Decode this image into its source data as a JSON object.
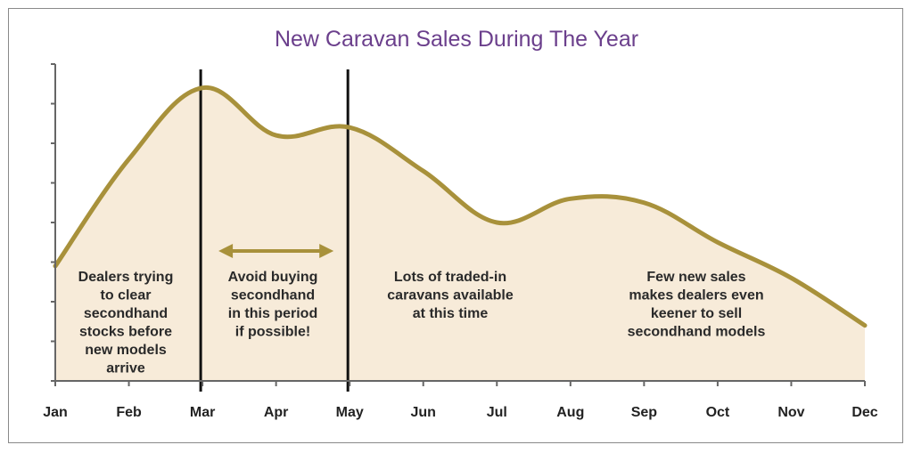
{
  "colors": {
    "title": "#6b3f8c",
    "line": "#a8913b",
    "fill": "#f7ebd9",
    "axis": "#666666",
    "marker": "#111111",
    "arrow": "#a8913b"
  },
  "chart_data": {
    "type": "area",
    "title": "New Caravan Sales During The Year",
    "xlabel": "",
    "ylabel": "",
    "categories": [
      "Jan",
      "Feb",
      "Mar",
      "Apr",
      "May",
      "Jun",
      "Jul",
      "Aug",
      "Sep",
      "Oct",
      "Nov",
      "Dec"
    ],
    "ylim": [
      0,
      8
    ],
    "y_ticks": 8,
    "y_tick_labels_shown": false,
    "grid": false,
    "series": [
      {
        "values": [
          2.9,
          5.6,
          7.4,
          6.2,
          6.4,
          5.3,
          4.0,
          4.6,
          4.5,
          3.5,
          2.6,
          1.4
        ]
      }
    ],
    "marker_lines": [
      {
        "x": "Mar"
      },
      {
        "x": "May"
      }
    ],
    "arrow": {
      "from": "Mar",
      "to": "May"
    },
    "annotations": [
      {
        "lines": [
          "Dealers trying",
          "to clear",
          "secondhand",
          "stocks before",
          "new models",
          "arrive"
        ]
      },
      {
        "lines": [
          "Avoid buying",
          "secondhand",
          "in this period",
          "if possible!"
        ]
      },
      {
        "lines": [
          "Lots of traded-in",
          "caravans available",
          "at this time"
        ]
      },
      {
        "lines": [
          "Few new sales",
          "makes dealers even",
          "keener to sell",
          "secondhand models"
        ]
      }
    ]
  }
}
